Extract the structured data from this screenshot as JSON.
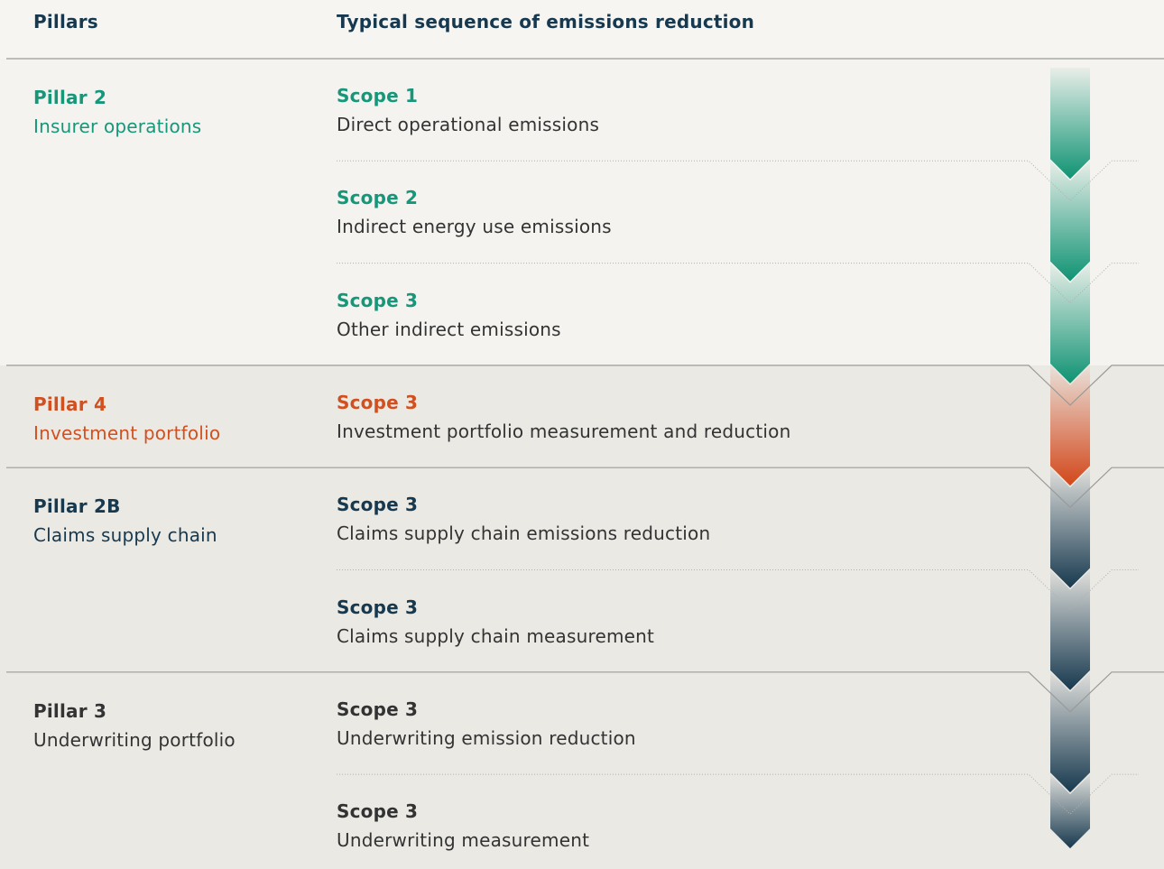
{
  "header": {
    "pillars": "Pillars",
    "sequence": "Typical sequence of emissions reduction"
  },
  "groups": [
    {
      "pillar": "Pillar 2",
      "name": "Insurer operations",
      "color": "#16977a",
      "arrow_color": "#0f9373",
      "items": [
        {
          "scope": "Scope 1",
          "desc": "Direct operational emissions"
        },
        {
          "scope": "Scope 2",
          "desc": "Indirect energy use emissions"
        },
        {
          "scope": "Scope 3",
          "desc": "Other indirect emissions"
        }
      ]
    },
    {
      "pillar": "Pillar 4",
      "name": "Investment portfolio",
      "color": "#d2501f",
      "arrow_color": "#d2471a",
      "items": [
        {
          "scope": "Scope 3",
          "desc": "Investment portfolio measurement and reduction"
        }
      ]
    },
    {
      "pillar": "Pillar 2B",
      "name": "Claims supply chain",
      "color": "#17394f",
      "arrow_color": "#17394f",
      "items": [
        {
          "scope": "Scope 3",
          "desc": "Claims supply chain emissions reduction"
        },
        {
          "scope": "Scope 3",
          "desc": "Claims supply chain measurement"
        }
      ]
    },
    {
      "pillar": "Pillar 3",
      "name": "Underwriting portfolio",
      "color": "#333333",
      "arrow_color": "#17394f",
      "items": [
        {
          "scope": "Scope 3",
          "desc": "Underwriting emission reduction"
        },
        {
          "scope": "Scope 3",
          "desc": "Underwriting measurement"
        }
      ]
    }
  ]
}
